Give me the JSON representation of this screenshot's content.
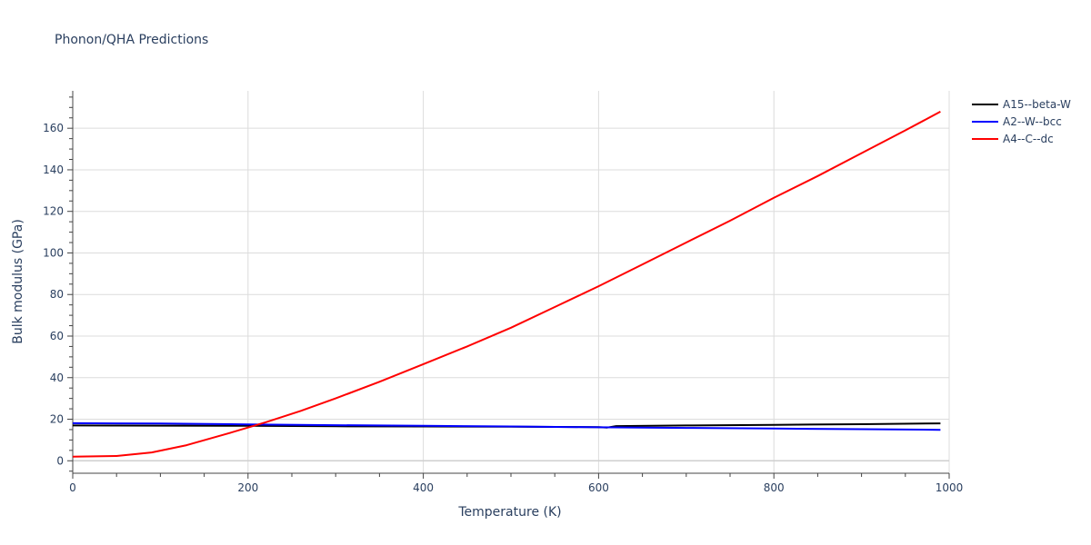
{
  "chart_data": {
    "type": "line",
    "title": "Phonon/QHA Predictions",
    "xlabel": "Temperature (K)",
    "ylabel": "Bulk modulus (GPa)",
    "xlim": [
      0,
      1000
    ],
    "ylim": [
      -6,
      178
    ],
    "xticks": [
      0,
      200,
      400,
      600,
      800,
      1000
    ],
    "yticks": [
      0,
      20,
      40,
      60,
      80,
      100,
      120,
      140,
      160
    ],
    "grid": true,
    "legend_position": "top-right",
    "series": [
      {
        "name": "A15--beta-W",
        "color": "#000000",
        "x": [
          0,
          100,
          200,
          300,
          400,
          500,
          600,
          610,
          620,
          700,
          800,
          900,
          990
        ],
        "y": [
          17.0,
          16.9,
          16.8,
          16.6,
          16.5,
          16.4,
          16.2,
          16.0,
          16.7,
          17.0,
          17.3,
          17.6,
          18.0
        ]
      },
      {
        "name": "A2--W--bcc",
        "color": "#0000ff",
        "x": [
          0,
          100,
          200,
          300,
          400,
          500,
          600,
          700,
          800,
          900,
          990
        ],
        "y": [
          18.1,
          17.9,
          17.5,
          17.1,
          16.8,
          16.5,
          16.1,
          15.8,
          15.5,
          15.2,
          14.9
        ]
      },
      {
        "name": "A4--C--dc",
        "color": "#ff0000",
        "x": [
          0,
          50,
          90,
          130,
          180,
          220,
          260,
          300,
          350,
          400,
          450,
          500,
          550,
          600,
          650,
          700,
          750,
          800,
          850,
          900,
          950,
          990
        ],
        "y": [
          2.0,
          2.3,
          4.0,
          7.5,
          13.5,
          18.5,
          24.0,
          30.0,
          38.0,
          46.5,
          55.0,
          64.0,
          74.0,
          84.0,
          94.5,
          105.0,
          115.5,
          126.5,
          137.0,
          148.0,
          159.0,
          168.0
        ]
      }
    ]
  }
}
